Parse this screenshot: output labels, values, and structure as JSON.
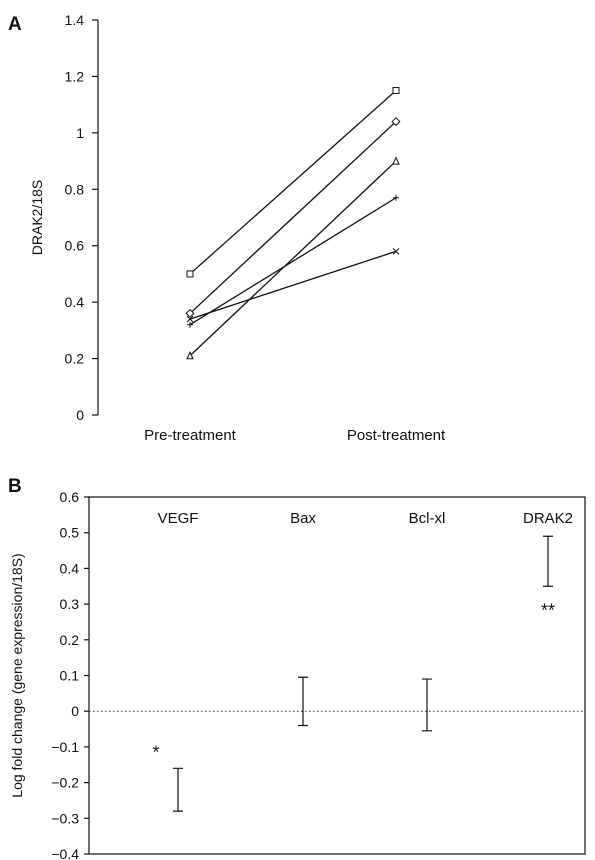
{
  "chart_data": [
    {
      "panel": "A",
      "type": "line",
      "ylabel": "DRAK2/18S",
      "categories": [
        "Pre-treatment",
        "Post-treatment"
      ],
      "ylim": [
        0,
        1.4
      ],
      "yticks": [
        0,
        0.2,
        0.4,
        0.6,
        0.8,
        1,
        1.2,
        1.4
      ],
      "series": [
        {
          "marker": "square",
          "values": [
            0.5,
            1.15
          ]
        },
        {
          "marker": "diamond",
          "values": [
            0.36,
            1.04
          ]
        },
        {
          "marker": "triangle",
          "values": [
            0.21,
            0.9
          ]
        },
        {
          "marker": "plus",
          "values": [
            0.32,
            0.77
          ]
        },
        {
          "marker": "cross",
          "values": [
            0.34,
            0.58
          ]
        }
      ]
    },
    {
      "panel": "B",
      "type": "errorbar",
      "ylabel": "Log fold change (gene expression/18S)",
      "categories": [
        "VEGF",
        "Bax",
        "Bcl-xl",
        "DRAK2"
      ],
      "ylim": [
        -0.4,
        0.6
      ],
      "yticks": [
        -0.4,
        -0.3,
        -0.2,
        -0.1,
        0,
        0.1,
        0.2,
        0.3,
        0.4,
        0.5,
        0.6
      ],
      "ranges": [
        [
          -0.28,
          -0.16
        ],
        [
          -0.04,
          0.095
        ],
        [
          -0.055,
          0.09
        ],
        [
          0.35,
          0.49
        ]
      ],
      "significance": [
        "*",
        "",
        "",
        "**"
      ],
      "reference_line": 0
    }
  ]
}
